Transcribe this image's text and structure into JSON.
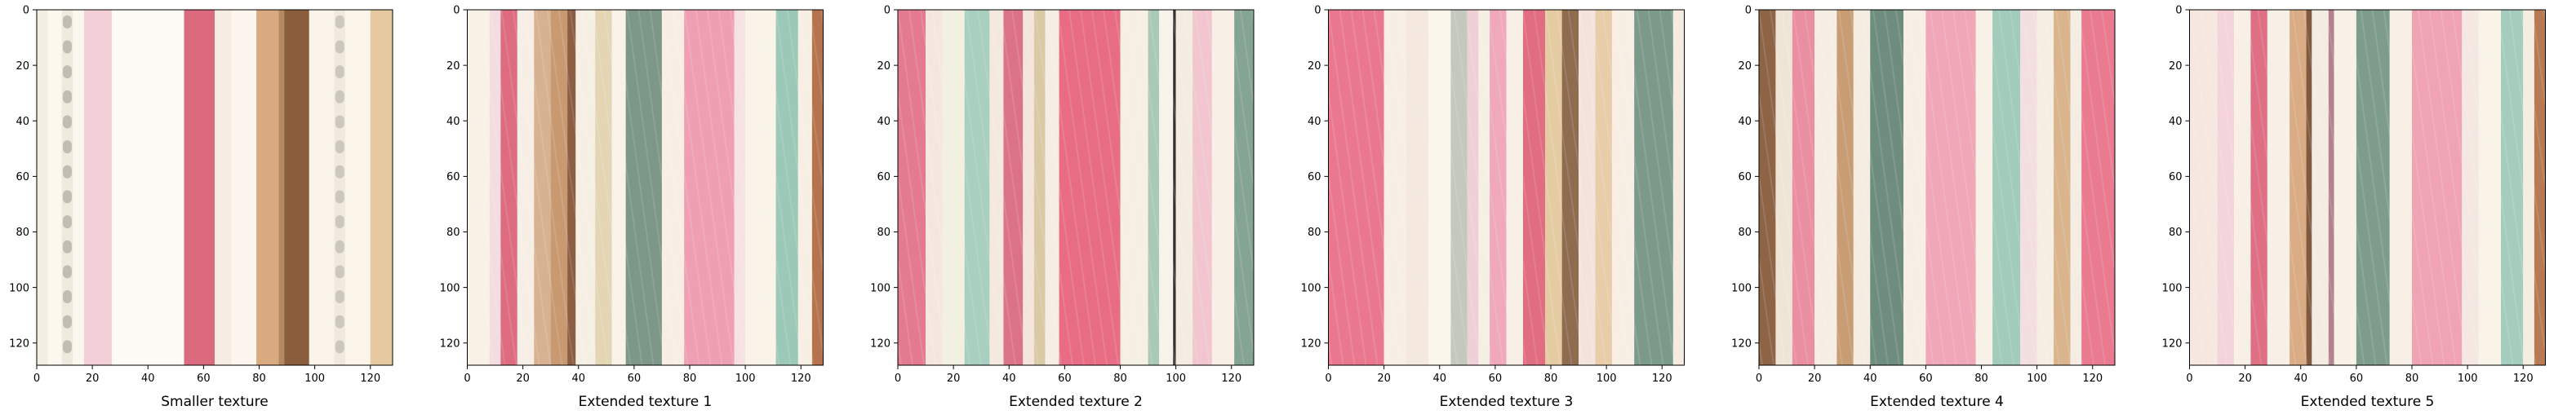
{
  "chart_data": [
    {
      "type": "image",
      "xlabel": "Smaller texture",
      "xticks": [
        0,
        20,
        40,
        60,
        80,
        100,
        120
      ],
      "yticks": [
        0,
        20,
        40,
        60,
        80,
        100,
        120
      ],
      "xlim": [
        0,
        128
      ],
      "ylim": [
        128,
        0
      ],
      "stripes": [
        {
          "x0": 0,
          "x1": 4,
          "color": "#f3ede3"
        },
        {
          "x0": 4,
          "x1": 9,
          "color": "#fbf8f0"
        },
        {
          "x0": 9,
          "x1": 13,
          "color": "#bdb7ad",
          "dashed": true
        },
        {
          "x0": 13,
          "x1": 17,
          "color": "#fbf6ee"
        },
        {
          "x0": 17,
          "x1": 27,
          "color": "#f3cfd8"
        },
        {
          "x0": 27,
          "x1": 53,
          "color": "#fdfbf5"
        },
        {
          "x0": 53,
          "x1": 64,
          "color": "#dc6a7f"
        },
        {
          "x0": 64,
          "x1": 70,
          "color": "#f7ece4"
        },
        {
          "x0": 70,
          "x1": 79,
          "color": "#fcf6ee"
        },
        {
          "x0": 79,
          "x1": 87,
          "color": "#d9aa80"
        },
        {
          "x0": 87,
          "x1": 89,
          "color": "#b58860"
        },
        {
          "x0": 89,
          "x1": 98,
          "color": "#8a5d3d"
        },
        {
          "x0": 98,
          "x1": 107,
          "color": "#faf4eb"
        },
        {
          "x0": 107,
          "x1": 111,
          "color": "#c9c4ba",
          "dashed": true
        },
        {
          "x0": 111,
          "x1": 120,
          "color": "#fcf6ea"
        },
        {
          "x0": 120,
          "x1": 128,
          "color": "#e6c9a0"
        }
      ]
    },
    {
      "type": "image",
      "xlabel": "Extended texture 1",
      "xticks": [
        0,
        20,
        40,
        60,
        80,
        100,
        120
      ],
      "yticks": [
        0,
        20,
        40,
        60,
        80,
        100,
        120
      ],
      "xlim": [
        0,
        128
      ],
      "ylim": [
        128,
        0
      ],
      "stripes": [
        {
          "x0": 0,
          "x1": 8,
          "color": "#f8f1e6"
        },
        {
          "x0": 8,
          "x1": 12,
          "color": "#f3dde1"
        },
        {
          "x0": 12,
          "x1": 18,
          "color": "#dd6c80"
        },
        {
          "x0": 18,
          "x1": 24,
          "color": "#f7efe6"
        },
        {
          "x0": 24,
          "x1": 30,
          "color": "#d8b190"
        },
        {
          "x0": 30,
          "x1": 36,
          "color": "#c99a72"
        },
        {
          "x0": 36,
          "x1": 39,
          "color": "#8c5e42"
        },
        {
          "x0": 39,
          "x1": 46,
          "color": "#f6f0e4"
        },
        {
          "x0": 46,
          "x1": 52,
          "color": "#e4d6b4"
        },
        {
          "x0": 52,
          "x1": 57,
          "color": "#f9f2e8"
        },
        {
          "x0": 57,
          "x1": 70,
          "color": "#7d9788"
        },
        {
          "x0": 70,
          "x1": 78,
          "color": "#f9eee5"
        },
        {
          "x0": 78,
          "x1": 96,
          "color": "#ef9fb2"
        },
        {
          "x0": 96,
          "x1": 100,
          "color": "#f6e2e2"
        },
        {
          "x0": 100,
          "x1": 111,
          "color": "#f9f3e8"
        },
        {
          "x0": 111,
          "x1": 119,
          "color": "#9cc8b8"
        },
        {
          "x0": 119,
          "x1": 124,
          "color": "#f7efe4"
        },
        {
          "x0": 124,
          "x1": 128,
          "color": "#b5744d"
        }
      ]
    },
    {
      "type": "image",
      "xlabel": "Extended texture 2",
      "xticks": [
        0,
        20,
        40,
        60,
        80,
        100,
        120
      ],
      "yticks": [
        0,
        20,
        40,
        60,
        80,
        100,
        120
      ],
      "xlim": [
        0,
        128
      ],
      "ylim": [
        128,
        0
      ],
      "stripes": [
        {
          "x0": 0,
          "x1": 10,
          "color": "#e47a90"
        },
        {
          "x0": 10,
          "x1": 16,
          "color": "#f6e6e0"
        },
        {
          "x0": 16,
          "x1": 24,
          "color": "#f2f0e0"
        },
        {
          "x0": 24,
          "x1": 33,
          "color": "#a8cfbf"
        },
        {
          "x0": 33,
          "x1": 38,
          "color": "#f5e9df"
        },
        {
          "x0": 38,
          "x1": 45,
          "color": "#dc7286"
        },
        {
          "x0": 45,
          "x1": 49,
          "color": "#f3e4dc"
        },
        {
          "x0": 49,
          "x1": 53,
          "color": "#d9c9a4"
        },
        {
          "x0": 53,
          "x1": 58,
          "color": "#f6eee4"
        },
        {
          "x0": 58,
          "x1": 80,
          "color": "#e86d84"
        },
        {
          "x0": 80,
          "x1": 90,
          "color": "#f6f0e3"
        },
        {
          "x0": 90,
          "x1": 94,
          "color": "#a9c9b6"
        },
        {
          "x0": 94,
          "x1": 99,
          "color": "#f8f3ea"
        },
        {
          "x0": 99,
          "x1": 100,
          "color": "#333333"
        },
        {
          "x0": 100,
          "x1": 106,
          "color": "#f4ece2"
        },
        {
          "x0": 106,
          "x1": 113,
          "color": "#f2c6cf"
        },
        {
          "x0": 113,
          "x1": 121,
          "color": "#f8f0e6"
        },
        {
          "x0": 121,
          "x1": 128,
          "color": "#84a494"
        }
      ]
    },
    {
      "type": "image",
      "xlabel": "Extended texture 3",
      "xticks": [
        0,
        20,
        40,
        60,
        80,
        100,
        120
      ],
      "yticks": [
        0,
        20,
        40,
        60,
        80,
        100,
        120
      ],
      "xlim": [
        0,
        128
      ],
      "ylim": [
        128,
        0
      ],
      "stripes": [
        {
          "x0": 0,
          "x1": 20,
          "color": "#e9788f"
        },
        {
          "x0": 20,
          "x1": 28,
          "color": "#f7efe6"
        },
        {
          "x0": 28,
          "x1": 36,
          "color": "#f4e8df"
        },
        {
          "x0": 36,
          "x1": 44,
          "color": "#fbf6ec"
        },
        {
          "x0": 44,
          "x1": 50,
          "color": "#c3c9bd"
        },
        {
          "x0": 50,
          "x1": 54,
          "color": "#f0d0d8"
        },
        {
          "x0": 54,
          "x1": 58,
          "color": "#f6efe4"
        },
        {
          "x0": 58,
          "x1": 64,
          "color": "#f0a9ba"
        },
        {
          "x0": 64,
          "x1": 70,
          "color": "#f8f0e6"
        },
        {
          "x0": 70,
          "x1": 78,
          "color": "#e06d82"
        },
        {
          "x0": 78,
          "x1": 84,
          "color": "#e5cba2"
        },
        {
          "x0": 84,
          "x1": 90,
          "color": "#8f6b4f"
        },
        {
          "x0": 90,
          "x1": 96,
          "color": "#f3e3dc"
        },
        {
          "x0": 96,
          "x1": 102,
          "color": "#e9cca8"
        },
        {
          "x0": 102,
          "x1": 110,
          "color": "#f7efe4"
        },
        {
          "x0": 110,
          "x1": 124,
          "color": "#7c9a8a"
        },
        {
          "x0": 124,
          "x1": 128,
          "color": "#f5ebe1"
        }
      ]
    },
    {
      "type": "image",
      "xlabel": "Extended texture 4",
      "xticks": [
        0,
        20,
        40,
        60,
        80,
        100,
        120
      ],
      "yticks": [
        0,
        20,
        40,
        60,
        80,
        100,
        120
      ],
      "xlim": [
        0,
        128
      ],
      "ylim": [
        128,
        0
      ],
      "stripes": [
        {
          "x0": 0,
          "x1": 6,
          "color": "#8e6446"
        },
        {
          "x0": 6,
          "x1": 12,
          "color": "#efe5d6"
        },
        {
          "x0": 12,
          "x1": 20,
          "color": "#ea8ea1"
        },
        {
          "x0": 20,
          "x1": 28,
          "color": "#f6eee4"
        },
        {
          "x0": 28,
          "x1": 34,
          "color": "#c89d74"
        },
        {
          "x0": 34,
          "x1": 40,
          "color": "#f5ede2"
        },
        {
          "x0": 40,
          "x1": 52,
          "color": "#6f8d7e"
        },
        {
          "x0": 52,
          "x1": 60,
          "color": "#f7efe5"
        },
        {
          "x0": 60,
          "x1": 78,
          "color": "#f0a7b8"
        },
        {
          "x0": 78,
          "x1": 84,
          "color": "#f8f1e8"
        },
        {
          "x0": 84,
          "x1": 94,
          "color": "#a1cbbb"
        },
        {
          "x0": 94,
          "x1": 100,
          "color": "#f3dfe0"
        },
        {
          "x0": 100,
          "x1": 106,
          "color": "#f6eee2"
        },
        {
          "x0": 106,
          "x1": 112,
          "color": "#d9b48d"
        },
        {
          "x0": 112,
          "x1": 116,
          "color": "#f5ece3"
        },
        {
          "x0": 116,
          "x1": 128,
          "color": "#e97a90"
        }
      ]
    },
    {
      "type": "image",
      "xlabel": "Extended texture 5",
      "xticks": [
        0,
        20,
        40,
        60,
        80,
        100,
        120
      ],
      "yticks": [
        0,
        20,
        40,
        60,
        80,
        100,
        120
      ],
      "xlim": [
        0,
        128
      ],
      "ylim": [
        128,
        0
      ],
      "stripes": [
        {
          "x0": 0,
          "x1": 10,
          "color": "#f6e8e0"
        },
        {
          "x0": 10,
          "x1": 16,
          "color": "#f4d3da"
        },
        {
          "x0": 16,
          "x1": 22,
          "color": "#f8f0e6"
        },
        {
          "x0": 22,
          "x1": 28,
          "color": "#df6f84"
        },
        {
          "x0": 28,
          "x1": 36,
          "color": "#f8f0e6"
        },
        {
          "x0": 36,
          "x1": 42,
          "color": "#d9ac86"
        },
        {
          "x0": 42,
          "x1": 44,
          "color": "#7f5a40"
        },
        {
          "x0": 44,
          "x1": 50,
          "color": "#f4ece2"
        },
        {
          "x0": 50,
          "x1": 52,
          "color": "#b2828e"
        },
        {
          "x0": 52,
          "x1": 60,
          "color": "#f8f1e7"
        },
        {
          "x0": 60,
          "x1": 72,
          "color": "#7d9c8c"
        },
        {
          "x0": 72,
          "x1": 80,
          "color": "#f8f0e6"
        },
        {
          "x0": 80,
          "x1": 98,
          "color": "#f0a3b4"
        },
        {
          "x0": 98,
          "x1": 104,
          "color": "#f5e7e2"
        },
        {
          "x0": 104,
          "x1": 112,
          "color": "#f9f3e8"
        },
        {
          "x0": 112,
          "x1": 120,
          "color": "#a5cdbd"
        },
        {
          "x0": 120,
          "x1": 124,
          "color": "#f5ece2"
        },
        {
          "x0": 124,
          "x1": 128,
          "color": "#b87a52"
        }
      ]
    }
  ]
}
